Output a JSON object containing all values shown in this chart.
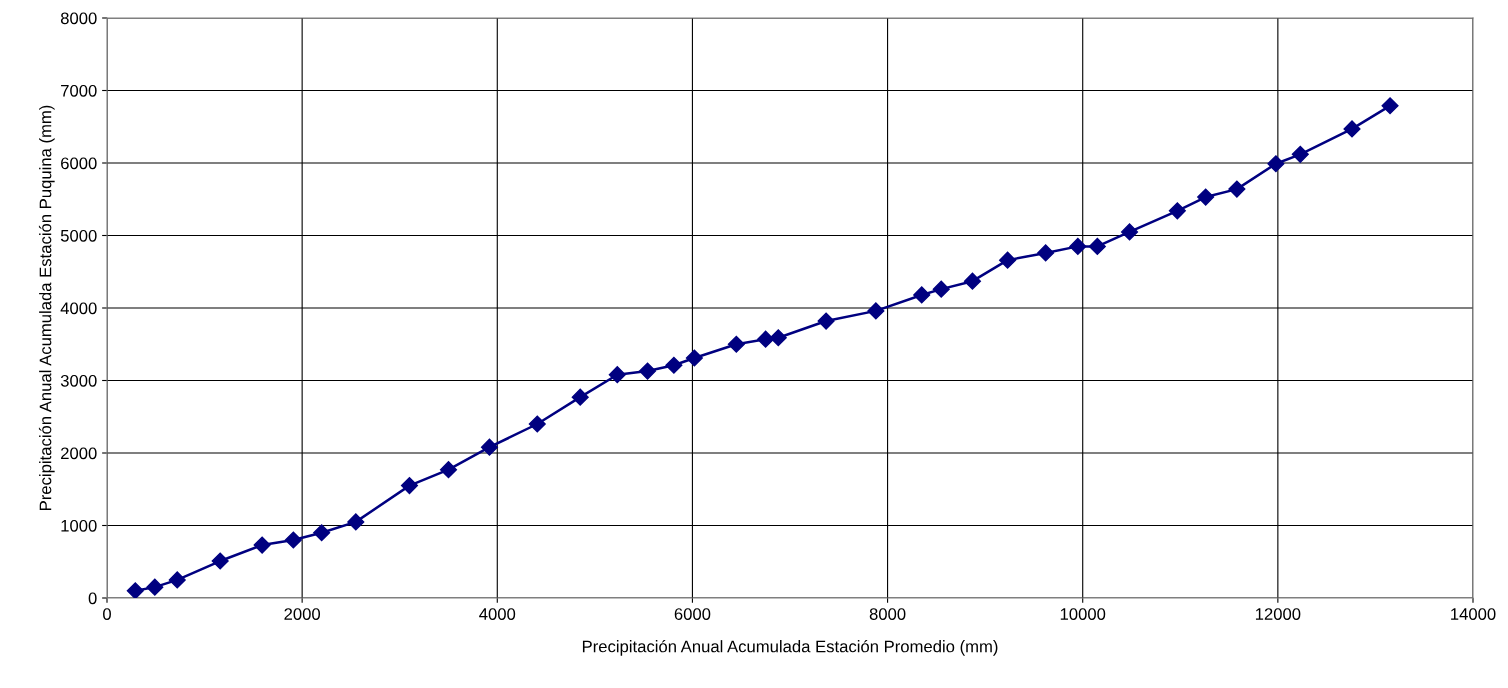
{
  "chart_data": {
    "type": "line",
    "xlabel": "Precipitación Anual Acumulada Estación Promedio (mm)",
    "ylabel": "Precipitación Anual Acumulada Estación Puquina (mm)",
    "series": [
      {
        "color": "#000080",
        "x": [
          290,
          490,
          720,
          1160,
          1590,
          1910,
          2200,
          2550,
          3100,
          3500,
          3920,
          4410,
          4850,
          5230,
          5540,
          5810,
          6020,
          6450,
          6750,
          6880,
          7370,
          7880,
          8350,
          8550,
          8870,
          9230,
          9620,
          9950,
          10150,
          10480,
          10970,
          11260,
          11580,
          11980,
          12230,
          12760,
          13150
        ],
        "values": [
          100,
          150,
          250,
          510,
          730,
          800,
          900,
          1050,
          1550,
          1770,
          2080,
          2400,
          2770,
          3080,
          3130,
          3210,
          3310,
          3500,
          3570,
          3590,
          3820,
          3960,
          4180,
          4260,
          4370,
          4660,
          4760,
          4850,
          4850,
          5050,
          5340,
          5530,
          5640,
          5990,
          6120,
          6470,
          6790
        ]
      }
    ],
    "xlim": [
      0,
      14000
    ],
    "xticks": [
      0,
      2000,
      4000,
      6000,
      8000,
      10000,
      12000,
      14000
    ],
    "ylim": [
      0,
      8000
    ],
    "yticks": [
      0,
      1000,
      2000,
      3000,
      4000,
      5000,
      6000,
      7000,
      8000
    ],
    "grid": true,
    "marker": "diamond",
    "line_style": "solid"
  }
}
